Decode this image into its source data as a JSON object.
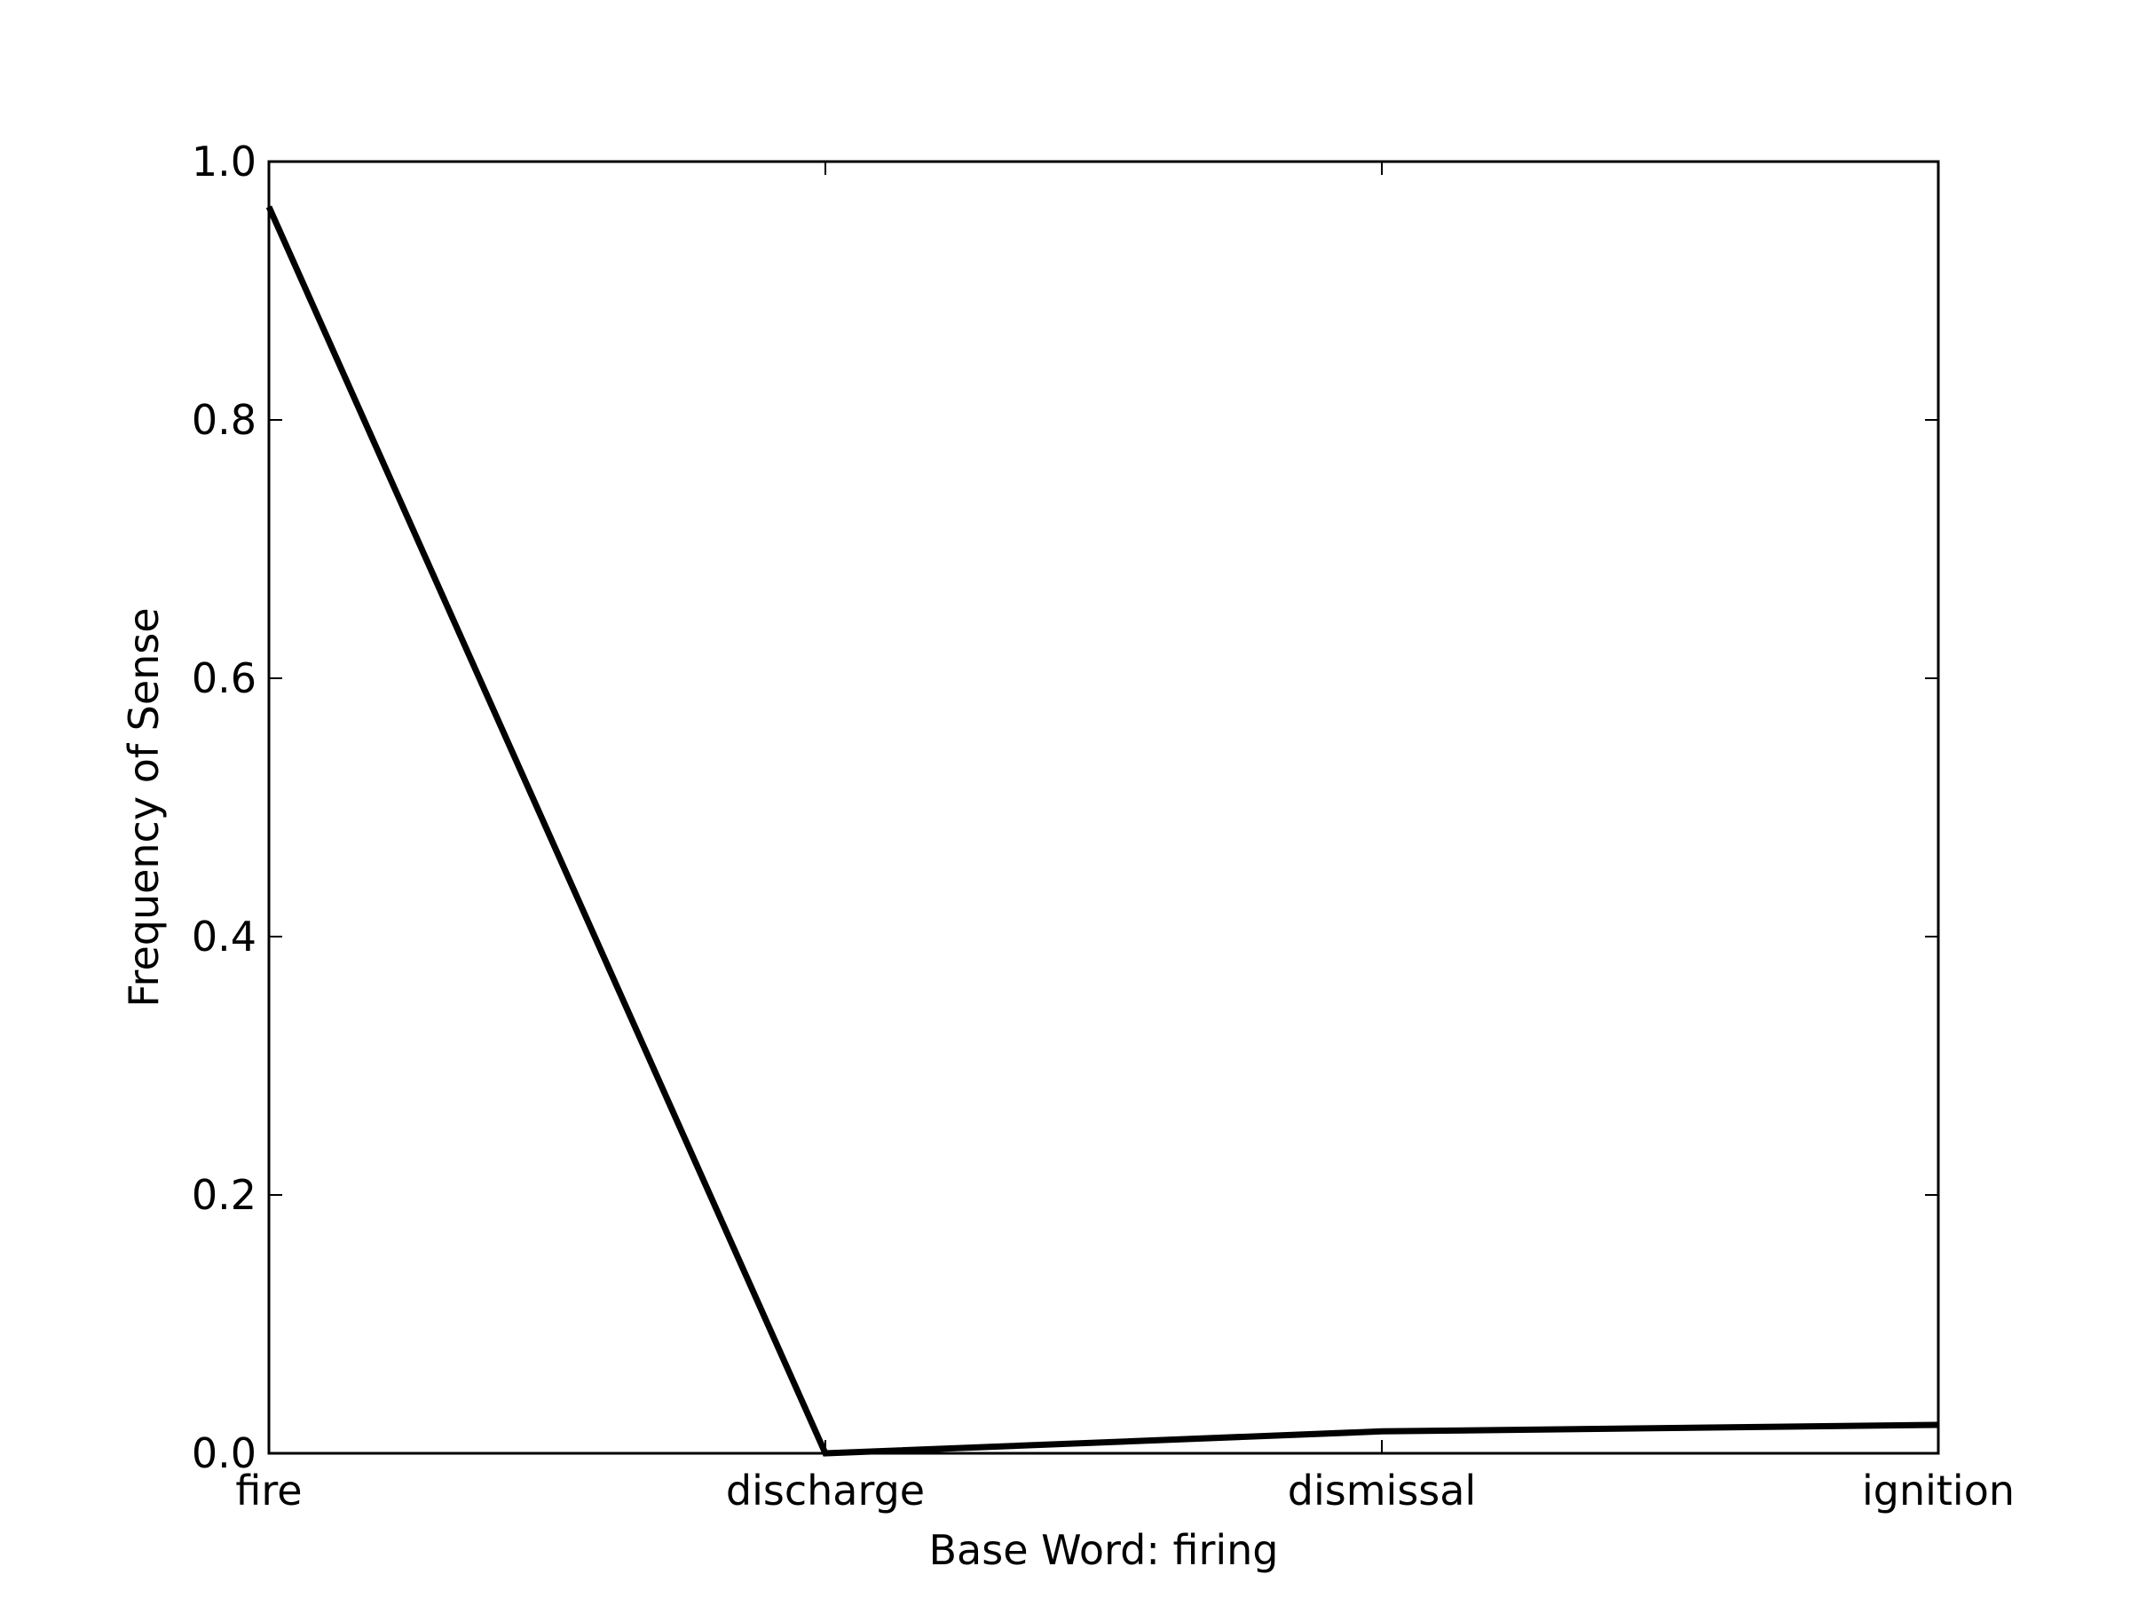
{
  "chart_data": {
    "type": "line",
    "categories": [
      "fire",
      "discharge",
      "dismissal",
      "ignition"
    ],
    "series": [
      {
        "values": [
          0.965,
          0.0,
          0.017,
          0.022
        ]
      }
    ],
    "title": "",
    "xlabel": "Base Word: firing",
    "ylabel": "Frequency of Sense",
    "ylim": [
      0.0,
      1.0
    ],
    "yticks": [
      "0.0",
      "0.2",
      "0.4",
      "0.6",
      "0.8",
      "1.0"
    ],
    "grid": false,
    "line_color": "#000000"
  }
}
